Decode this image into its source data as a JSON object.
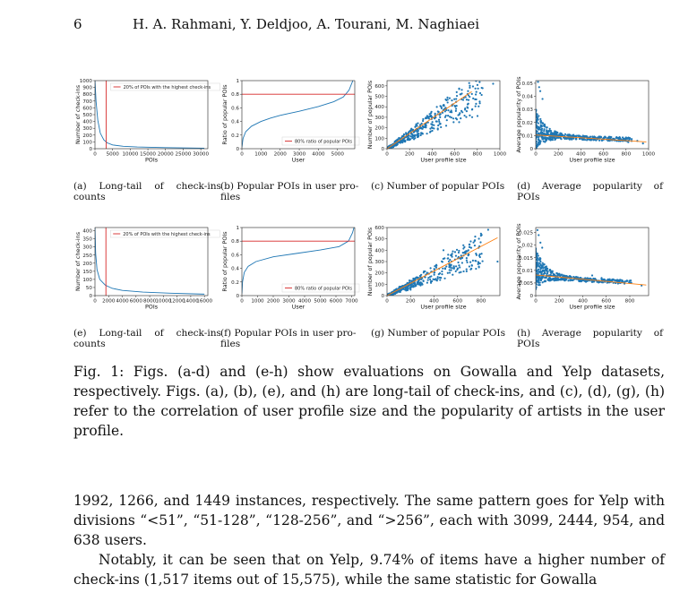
{
  "header": {
    "page_number": "6",
    "authors": "H. A. Rahmani, Y. Deldjoo, A. Tourani, M. Naghiaei"
  },
  "colors": {
    "blue": "#1f77b4",
    "orange": "#ff7f0e",
    "red": "#d62728"
  },
  "captions": {
    "a": "(a)  Long-tail  of  check-ins counts",
    "b": "(b) Popular POIs in user pro- files",
    "c": "(c) Number of popular POIs",
    "d": "(d)  Average  popularity  of POIs",
    "e": "(e)  Long-tail  of  check-ins counts",
    "f": "(f) Popular POIs in user pro- files",
    "g": "(g) Number of popular POIs",
    "h": "(h)  Average  popularity  of POIs"
  },
  "figure_caption": "Fig. 1: Figs. (a-d) and (e-h) show evaluations on Gowalla and Yelp datasets, respectively. Figs. (a), (b), (e), and (h) are long-tail of check-ins, and (c), (d), (g), (h) refer to the correlation of user profile size and the popularity of artists in the user profile.",
  "body": {
    "p1": "1992, 1266, and 1449 instances, respectively. The same pattern goes for Yelp with divisions “<51”, “51-128”, “128-256”, and “>256”, each with 3099, 2444, 954, and 638 users.",
    "p2": "Notably, it can be seen that on Yelp, 9.74% of items have a higher number of check-ins (1,517 items out of 15,575), while the same statistic for Gowalla"
  },
  "chart_data": [
    {
      "id": "a",
      "type": "line",
      "xlabel": "POIs",
      "ylabel": "Number of check-ins",
      "xlim": [
        0,
        32000
      ],
      "ylim": [
        0,
        1000
      ],
      "xticks": [
        0,
        5000,
        10000,
        15000,
        20000,
        25000,
        30000
      ],
      "yticks": [
        0,
        100,
        200,
        300,
        400,
        500,
        600,
        700,
        800,
        900,
        1000
      ],
      "curve": {
        "x": [
          0,
          300,
          800,
          1500,
          2500,
          3500,
          5000,
          8000,
          12000,
          20000,
          31000
        ],
        "y": [
          1000,
          700,
          420,
          230,
          130,
          85,
          55,
          35,
          25,
          15,
          8
        ]
      },
      "vline_x": 3200,
      "legend": "20% of POIs with the highest check-ins"
    },
    {
      "id": "b",
      "type": "line",
      "xlabel": "User",
      "ylabel": "Ratio of popular POIs",
      "xlim": [
        0,
        5900
      ],
      "ylim": [
        0,
        1.0
      ],
      "xticks": [
        0,
        1000,
        2000,
        3000,
        4000,
        5000
      ],
      "yticks": [
        0.0,
        0.2,
        0.4,
        0.6,
        0.8,
        1.0
      ],
      "curve": {
        "x": [
          0,
          60,
          200,
          500,
          1000,
          1500,
          2000,
          3000,
          4000,
          4800,
          5300,
          5600,
          5800
        ],
        "y": [
          0.02,
          0.15,
          0.25,
          0.33,
          0.4,
          0.45,
          0.49,
          0.55,
          0.62,
          0.69,
          0.76,
          0.86,
          1.0
        ]
      },
      "hline_y": 0.8,
      "legend": "80% ratio of popular POIs"
    },
    {
      "id": "c",
      "type": "scatter",
      "xlabel": "User profile size",
      "ylabel": "Number of popular POIs",
      "xlim": [
        0,
        1000
      ],
      "ylim": [
        0,
        650
      ],
      "xticks": [
        0,
        200,
        400,
        600,
        800,
        1000
      ],
      "yticks": [
        0,
        100,
        200,
        300,
        400,
        500,
        600
      ],
      "fit": {
        "x": [
          0,
          750
        ],
        "y": [
          0,
          545
        ]
      },
      "outliers": {
        "x": [
          940,
          720,
          610,
          560,
          480,
          520,
          450,
          390
        ],
        "y": [
          620,
          430,
          360,
          350,
          400,
          470,
          330,
          340
        ]
      }
    },
    {
      "id": "d",
      "type": "scatter",
      "xlabel": "User profile size",
      "ylabel": "Average popularity of POIs",
      "xlim": [
        0,
        1000
      ],
      "ylim": [
        0,
        0.052
      ],
      "xticks": [
        0,
        200,
        400,
        600,
        800,
        1000
      ],
      "yticks": [
        0.0,
        0.01,
        0.02,
        0.03,
        0.04,
        0.05
      ],
      "fit": {
        "x": [
          0,
          980
        ],
        "y": [
          0.0105,
          0.0052
        ]
      },
      "outliers": {
        "x": [
          20,
          30,
          40,
          60,
          820,
          900,
          950,
          700
        ],
        "y": [
          0.051,
          0.047,
          0.044,
          0.038,
          0.005,
          0.006,
          0.004,
          0.007
        ]
      }
    },
    {
      "id": "e",
      "type": "line",
      "xlabel": "POIs",
      "ylabel": "Number of check-ins",
      "xlim": [
        0,
        16500
      ],
      "ylim": [
        0,
        420
      ],
      "xticks": [
        0,
        2000,
        4000,
        6000,
        8000,
        10000,
        12000,
        14000,
        16000
      ],
      "ytick_labels": [
        "0",
        "50",
        "100",
        "150",
        "200",
        "250",
        "300",
        "350",
        "400"
      ],
      "yticks": [
        0,
        50,
        100,
        150,
        200,
        250,
        300,
        350,
        400
      ],
      "curve": {
        "x": [
          0,
          100,
          300,
          700,
          1500,
          2500,
          4000,
          7000,
          11000,
          16000
        ],
        "y": [
          420,
          260,
          160,
          100,
          65,
          45,
          32,
          22,
          15,
          9
        ]
      },
      "vline_x": 1600,
      "legend": "20% of POIs with the highest check-ins"
    },
    {
      "id": "f",
      "type": "line",
      "xlabel": "User",
      "ylabel": "Ratio of popular POIs",
      "xlim": [
        0,
        7200
      ],
      "ylim": [
        0,
        1.0
      ],
      "xticks": [
        0,
        1000,
        2000,
        3000,
        4000,
        5000,
        6000,
        7000
      ],
      "yticks": [
        0.0,
        0.2,
        0.4,
        0.6,
        0.8,
        1.0
      ],
      "curve": {
        "x": [
          0,
          40,
          150,
          400,
          900,
          2000,
          3500,
          5000,
          6200,
          6800,
          7050,
          7150
        ],
        "y": [
          0.03,
          0.2,
          0.34,
          0.43,
          0.5,
          0.57,
          0.62,
          0.67,
          0.72,
          0.8,
          0.92,
          1.0
        ]
      },
      "hline_y": 0.8,
      "legend": "80% ratio of popular POIs"
    },
    {
      "id": "g",
      "type": "scatter",
      "xlabel": "User profile size",
      "ylabel": "Number of popular POIs",
      "xlim": [
        0,
        960
      ],
      "ylim": [
        0,
        600
      ],
      "xticks": [
        0,
        200,
        400,
        600,
        800
      ],
      "yticks": [
        0,
        100,
        200,
        300,
        400,
        500,
        600
      ],
      "fit": {
        "x": [
          0,
          940
        ],
        "y": [
          0,
          510
        ]
      },
      "outliers": {
        "x": [
          860,
          940,
          750,
          700,
          560,
          520,
          480,
          610
        ],
        "y": [
          580,
          300,
          520,
          450,
          390,
          360,
          400,
          330
        ]
      }
    },
    {
      "id": "h",
      "type": "scatter",
      "xlabel": "User profile size",
      "ylabel": "Average popularity of POIs",
      "xlim": [
        0,
        960
      ],
      "ylim": [
        0,
        0.027
      ],
      "xticks": [
        0,
        200,
        400,
        600,
        800
      ],
      "yticks": [
        0.0,
        0.005,
        0.01,
        0.015,
        0.02,
        0.025
      ],
      "fit": {
        "x": [
          0,
          940
        ],
        "y": [
          0.0082,
          0.0042
        ]
      },
      "outliers": {
        "x": [
          15,
          25,
          40,
          55,
          480,
          560,
          720,
          900
        ],
        "y": [
          0.026,
          0.024,
          0.021,
          0.019,
          0.008,
          0.007,
          0.005,
          0.004
        ]
      }
    }
  ]
}
